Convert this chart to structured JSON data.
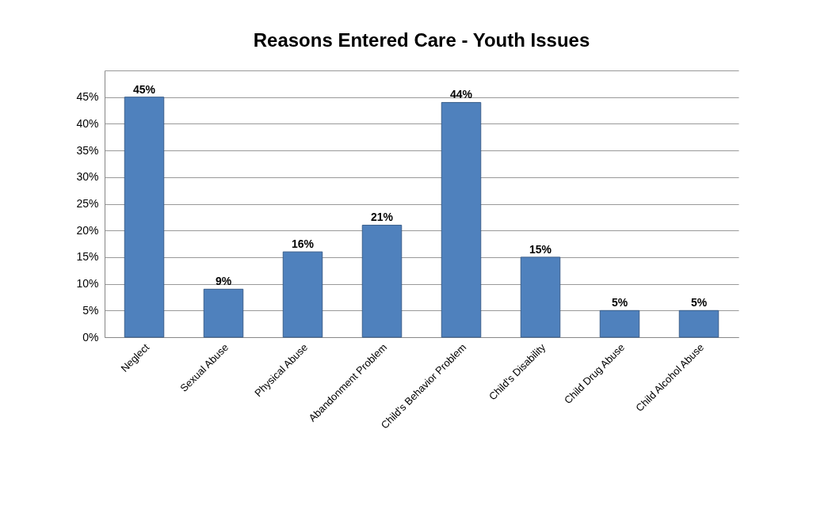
{
  "chart_data": {
    "type": "bar",
    "title": "Reasons Entered Care - Youth Issues",
    "categories": [
      "Neglect",
      "Sexual Abuse",
      "Physical Abuse",
      "Abandonment Problem",
      "Child's Behavior Problem",
      "Child's Disability",
      "Child Drug Abuse",
      "Child Alcohol Abuse"
    ],
    "values": [
      45,
      9,
      16,
      21,
      44,
      15,
      5,
      5
    ],
    "value_labels": [
      "45%",
      "9%",
      "16%",
      "21%",
      "44%",
      "15%",
      "5%",
      "5%"
    ],
    "color": "#4f81bd",
    "ylim": [
      0,
      50
    ],
    "yticks": [
      {
        "value": 0,
        "label": "0%"
      },
      {
        "value": 5,
        "label": "5%"
      },
      {
        "value": 10,
        "label": "10%"
      },
      {
        "value": 15,
        "label": "15%"
      },
      {
        "value": 20,
        "label": "20%"
      },
      {
        "value": 25,
        "label": "25%"
      },
      {
        "value": 30,
        "label": "30%"
      },
      {
        "value": 35,
        "label": "35%"
      },
      {
        "value": 40,
        "label": "40%"
      },
      {
        "value": 45,
        "label": "45%"
      },
      {
        "value": 50,
        "label": null
      }
    ],
    "grid": "y"
  }
}
